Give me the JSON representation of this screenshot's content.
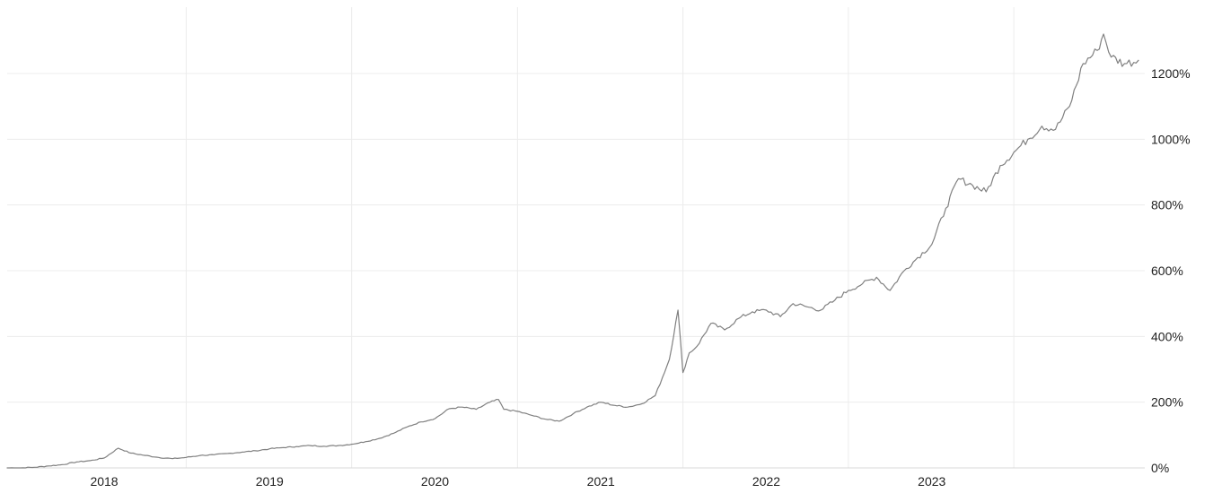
{
  "chart_data": {
    "type": "line",
    "title": "",
    "xlabel": "",
    "ylabel": "",
    "x_tick_labels": [
      "2018",
      "2019",
      "2020",
      "2021",
      "2022",
      "2023"
    ],
    "y_tick_labels": [
      "0%",
      "200%",
      "400%",
      "600%",
      "800%",
      "1000%",
      "1200%"
    ],
    "y_ticks": [
      0,
      200,
      400,
      600,
      800,
      1000,
      1200
    ],
    "ylim": [
      0,
      1300
    ],
    "xlim": [
      "2017-06-01",
      "2024-04-15"
    ],
    "grid": true,
    "legend": "none",
    "series": [
      {
        "x": [
          "2017-06-01",
          "2017-07-01",
          "2017-08-01",
          "2017-09-01",
          "2017-10-01",
          "2017-11-01",
          "2017-12-01",
          "2018-01-01",
          "2018-02-01",
          "2018-03-01",
          "2018-04-01",
          "2018-05-01",
          "2018-06-01",
          "2018-07-01",
          "2018-08-01",
          "2018-09-01",
          "2018-10-01",
          "2018-11-01",
          "2018-12-01",
          "2019-01-01",
          "2019-02-01",
          "2019-03-01",
          "2019-04-01",
          "2019-05-01",
          "2019-06-01",
          "2019-07-01",
          "2019-08-01",
          "2019-09-01",
          "2019-10-01",
          "2019-11-01",
          "2019-12-01",
          "2020-01-01",
          "2020-02-01",
          "2020-03-01",
          "2020-04-01",
          "2020-05-01",
          "2020-05-20",
          "2020-06-01",
          "2020-07-01",
          "2020-08-01",
          "2020-09-01",
          "2020-10-01",
          "2020-11-01",
          "2020-12-01",
          "2021-01-01",
          "2021-02-01",
          "2021-03-01",
          "2021-04-01",
          "2021-05-01",
          "2021-06-01",
          "2021-06-20",
          "2021-07-01",
          "2021-07-15",
          "2021-08-01",
          "2021-09-01",
          "2021-10-01",
          "2021-11-01",
          "2021-12-01",
          "2022-01-01",
          "2022-02-01",
          "2022-03-01",
          "2022-04-01",
          "2022-05-01",
          "2022-06-01",
          "2022-07-01",
          "2022-08-01",
          "2022-09-01",
          "2022-10-01",
          "2022-11-01",
          "2022-12-01",
          "2023-01-01",
          "2023-02-01",
          "2023-03-01",
          "2023-04-01",
          "2023-05-01",
          "2023-06-01",
          "2023-07-01",
          "2023-08-01",
          "2023-09-01",
          "2023-10-01",
          "2023-11-01",
          "2023-12-01",
          "2024-01-01",
          "2024-01-15",
          "2024-02-01",
          "2024-03-01",
          "2024-04-01"
        ],
        "y": [
          0,
          0,
          2,
          6,
          10,
          18,
          22,
          30,
          60,
          45,
          38,
          32,
          28,
          32,
          38,
          40,
          44,
          48,
          52,
          58,
          62,
          65,
          68,
          66,
          68,
          72,
          80,
          90,
          105,
          125,
          140,
          150,
          180,
          185,
          178,
          200,
          208,
          178,
          172,
          160,
          148,
          142,
          165,
          185,
          200,
          190,
          185,
          195,
          220,
          330,
          480,
          290,
          350,
          370,
          440,
          420,
          455,
          475,
          480,
          460,
          500,
          490,
          480,
          510,
          540,
          560,
          580,
          540,
          600,
          640,
          680,
          790,
          880,
          860,
          840,
          920,
          960,
          1000,
          1040,
          1030,
          1100,
          1230,
          1270,
          1320,
          1250,
          1230,
          1240
        ]
      }
    ]
  }
}
